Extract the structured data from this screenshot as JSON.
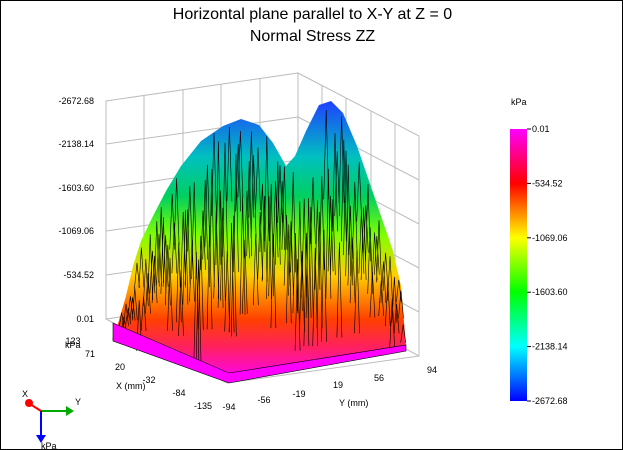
{
  "window_header": "",
  "title_line1": "Horizontal plane parallel to X-Y at Z = 0",
  "title_line2": "Normal Stress ZZ",
  "chart_data": {
    "type": "surface3d",
    "title": "Horizontal plane parallel to X-Y at Z = 0",
    "subtitle": "Normal Stress ZZ",
    "z_unit": "kPa",
    "z_ticks": [
      "-2672.68",
      "-2138.14",
      "-1603.60",
      "-1069.06",
      "-534.52",
      "0.01"
    ],
    "zlim": [
      -2672.68,
      0.01
    ],
    "xlabel": "X (mm)",
    "x_ticks": [
      "123",
      "71",
      "20",
      "-32",
      "-84",
      "-135"
    ],
    "ylabel": "Y (mm)",
    "y_ticks": [
      "-94",
      "-56",
      "-19",
      "19",
      "56",
      "94"
    ],
    "colorbar": {
      "unit": "kPa",
      "labels": [
        "0.01",
        "-534.52",
        "-1069.06",
        "-1603.60",
        "-2138.14",
        "-2672.68"
      ],
      "colors": [
        "#ff00ff",
        "#ff0000",
        "#ffff00",
        "#00ff00",
        "#00ffff",
        "#0000ff"
      ]
    },
    "triad": {
      "x_label": "X",
      "y_label": "Y",
      "z_label": "kPa",
      "x_color": "#ff0000",
      "y_color": "#00aa00",
      "z_color": "#0000ff"
    },
    "grid": true
  }
}
